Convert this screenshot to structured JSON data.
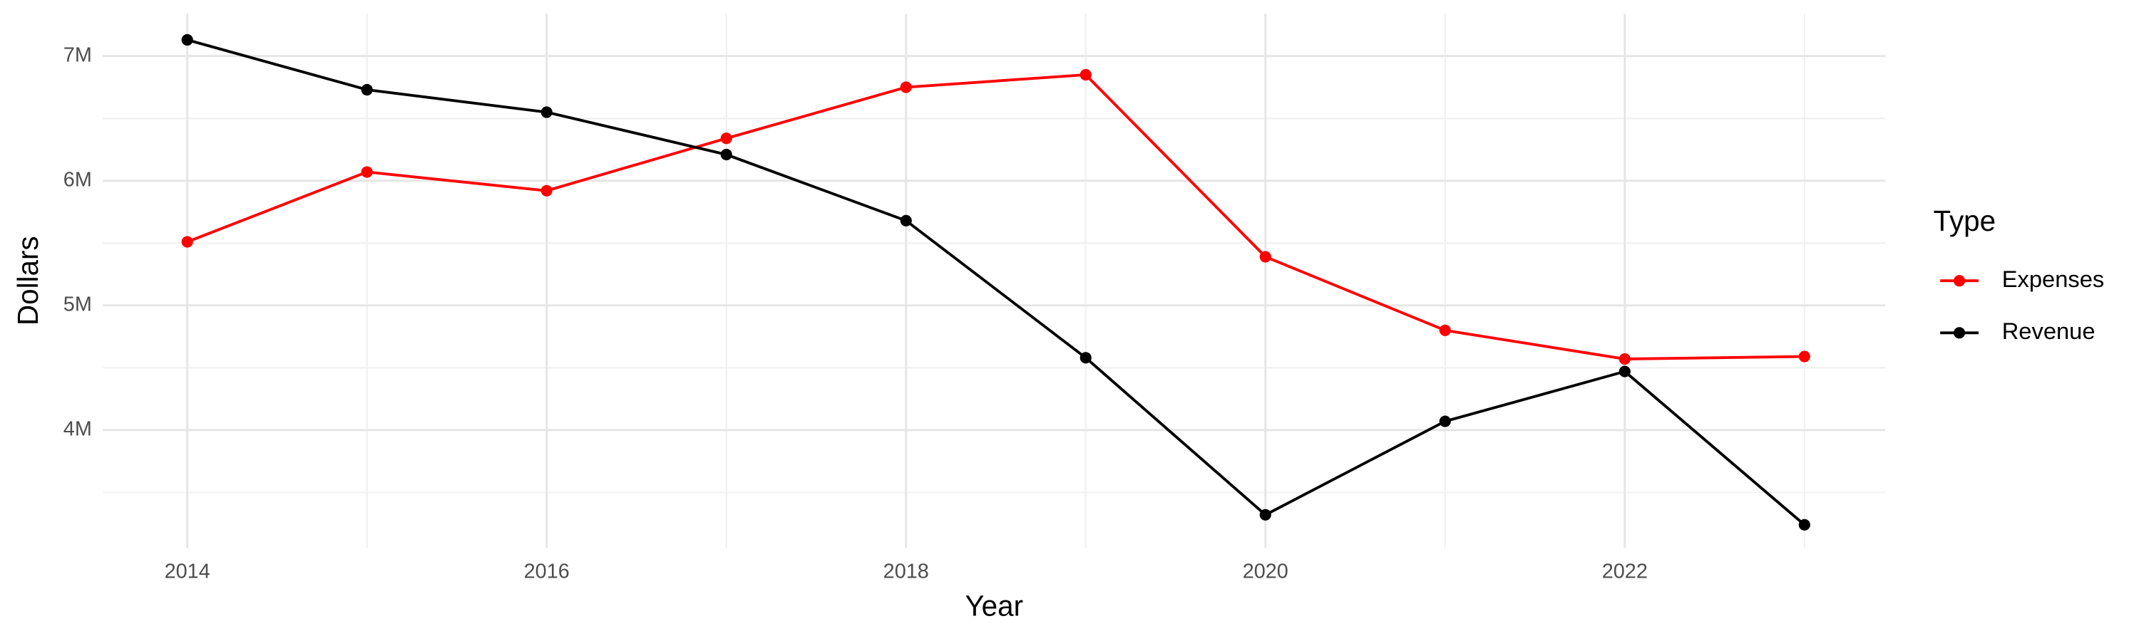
{
  "chart_data": {
    "type": "line",
    "x_label": "Year",
    "y_label": "Dollars",
    "legend_title": "Type",
    "legend_position": "right",
    "x": [
      2014,
      2015,
      2016,
      2017,
      2018,
      2019,
      2020,
      2021,
      2022,
      2023
    ],
    "series": [
      {
        "name": "Expenses",
        "color": "#ff0000",
        "values": [
          5510000,
          6070000,
          5920000,
          6340000,
          6750000,
          6850000,
          5390000,
          4800000,
          4570000,
          4590000
        ]
      },
      {
        "name": "Revenue",
        "color": "#000000",
        "values": [
          7130000,
          6730000,
          6550000,
          6210000,
          5680000,
          4580000,
          3320000,
          4070000,
          4470000,
          3240000
        ]
      }
    ],
    "xlim": [
      2013.53,
      2023.45
    ],
    "xticks": [
      2014,
      2016,
      2018,
      2020,
      2022
    ],
    "ylim": [
      3055000,
      7340000
    ],
    "yticks": [
      {
        "value": 4000000,
        "label": "4M"
      },
      {
        "value": 5000000,
        "label": "5M"
      },
      {
        "value": 6000000,
        "label": "6M"
      },
      {
        "value": 7000000,
        "label": "7M"
      }
    ],
    "grid": true
  }
}
